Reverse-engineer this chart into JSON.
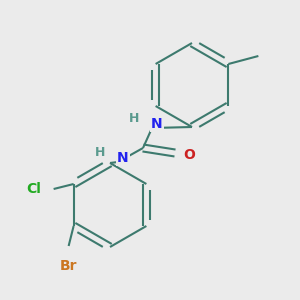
{
  "background_color": "#ebebeb",
  "bond_color": "#3d7a6e",
  "bond_width": 1.5,
  "atom_colors": {
    "N": "#2222ee",
    "O": "#cc2222",
    "Cl": "#22aa22",
    "Br": "#cc7722",
    "C": "#3d7a6e",
    "H": "#5a9a8e"
  },
  "font_size_large": 10,
  "font_size_small": 9,
  "font_size_methyl": 9
}
